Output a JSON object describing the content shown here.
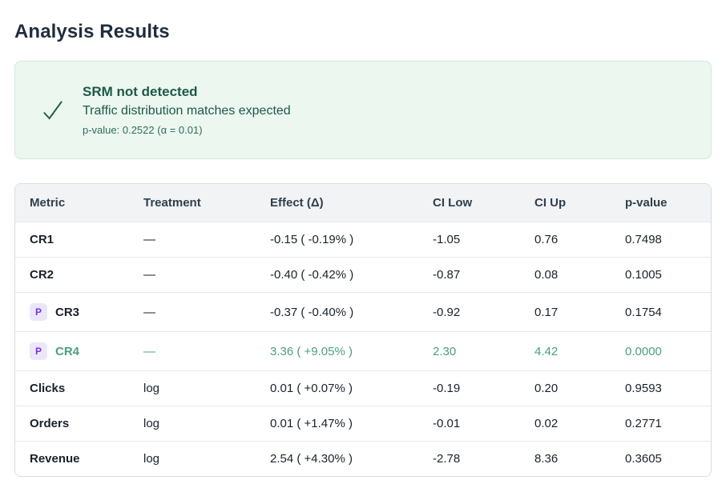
{
  "page": {
    "title": "Analysis Results"
  },
  "banner": {
    "icon": "check-icon",
    "title": "SRM not detected",
    "subtitle": "Traffic distribution matches expected",
    "detail": "p-value: 0.2522 (α = 0.01)"
  },
  "table": {
    "columns": [
      "Metric",
      "Treatment",
      "Effect (Δ)",
      "CI Low",
      "CI Up",
      "p-value"
    ],
    "rows": [
      {
        "metric": "CR1",
        "badge": null,
        "treatment": "—",
        "effect": "-0.15 ( -0.19% )",
        "ci_low": "-1.05",
        "ci_up": "0.76",
        "p_value": "0.7498",
        "highlight": false
      },
      {
        "metric": "CR2",
        "badge": null,
        "treatment": "—",
        "effect": "-0.40 ( -0.42% )",
        "ci_low": "-0.87",
        "ci_up": "0.08",
        "p_value": "0.1005",
        "highlight": false
      },
      {
        "metric": "CR3",
        "badge": "P",
        "treatment": "—",
        "effect": "-0.37 ( -0.40% )",
        "ci_low": "-0.92",
        "ci_up": "0.17",
        "p_value": "0.1754",
        "highlight": false
      },
      {
        "metric": "CR4",
        "badge": "P",
        "treatment": "—",
        "effect": "3.36 ( +9.05% )",
        "ci_low": "2.30",
        "ci_up": "4.42",
        "p_value": "0.0000",
        "highlight": true
      },
      {
        "metric": "Clicks",
        "badge": null,
        "treatment": "log",
        "effect": "0.01 ( +0.07% )",
        "ci_low": "-0.19",
        "ci_up": "0.20",
        "p_value": "0.9593",
        "highlight": false
      },
      {
        "metric": "Orders",
        "badge": null,
        "treatment": "log",
        "effect": "0.01 ( +1.47% )",
        "ci_low": "-0.01",
        "ci_up": "0.02",
        "p_value": "0.2771",
        "highlight": false
      },
      {
        "metric": "Revenue",
        "badge": null,
        "treatment": "log",
        "effect": "2.54 ( +4.30% )",
        "ci_low": "-2.78",
        "ci_up": "8.36",
        "p_value": "0.3605",
        "highlight": false
      }
    ]
  },
  "colors": {
    "accent_green": "#4b9f7e",
    "banner_bg": "#ecf7f0",
    "banner_border": "#d3e8da",
    "banner_text": "#1d5948",
    "banner_detail": "#2f6e5a",
    "badge_bg": "#ebe7fa",
    "badge_text": "#7434d6",
    "header_bg": "#f1f3f5"
  }
}
